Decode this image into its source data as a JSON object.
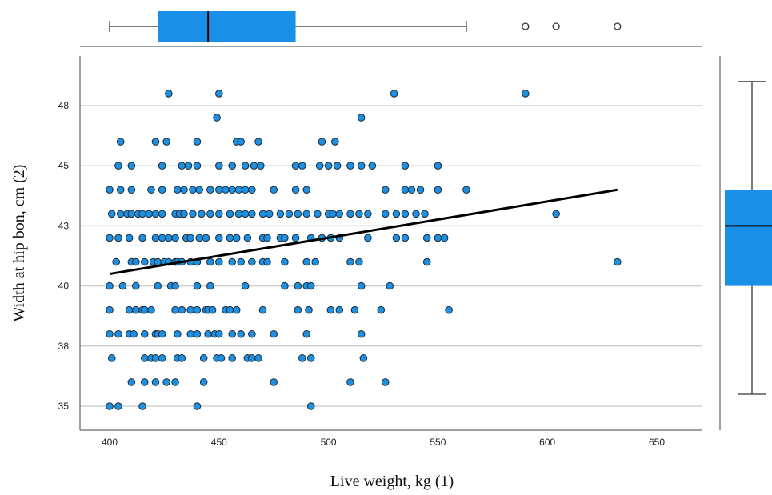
{
  "chart_data": {
    "type": "scatter",
    "title": "",
    "xlabel": "Live weight, kg (1)",
    "ylabel": "Width at hip bon, cm (2)",
    "xlim": [
      385,
      660
    ],
    "ylim": [
      34,
      50
    ],
    "xticks": [
      400,
      450,
      500,
      550,
      600,
      650
    ],
    "yticks": [
      {
        "value": 35,
        "label": "35"
      },
      {
        "value": 37.5,
        "label": "38"
      },
      {
        "value": 40,
        "label": "40"
      },
      {
        "value": 42.5,
        "label": "43"
      },
      {
        "value": 45,
        "label": "45"
      },
      {
        "value": 47.5,
        "label": "48"
      }
    ],
    "grid": "horizontal",
    "colors": {
      "points": "#1f8fe0",
      "point_edge": "#1a2a3a",
      "box": "#1a8fe8",
      "fit_line": "#000000",
      "grid": "#d0d0d0"
    },
    "points": [
      [
        400,
        35
      ],
      [
        404,
        35
      ],
      [
        415,
        35
      ],
      [
        440,
        35
      ],
      [
        492,
        35
      ],
      [
        410,
        36
      ],
      [
        416,
        36
      ],
      [
        421,
        36
      ],
      [
        426,
        36
      ],
      [
        430,
        36
      ],
      [
        443,
        36
      ],
      [
        475,
        36
      ],
      [
        510,
        36
      ],
      [
        526,
        36
      ],
      [
        401,
        37
      ],
      [
        416,
        37
      ],
      [
        419,
        37
      ],
      [
        421,
        37
      ],
      [
        424,
        37
      ],
      [
        431,
        37
      ],
      [
        433,
        37
      ],
      [
        443,
        37
      ],
      [
        449,
        37
      ],
      [
        451,
        37
      ],
      [
        456,
        37
      ],
      [
        463,
        37
      ],
      [
        465,
        37
      ],
      [
        468,
        37
      ],
      [
        488,
        37
      ],
      [
        492,
        37
      ],
      [
        516,
        37
      ],
      [
        400,
        38
      ],
      [
        404,
        38
      ],
      [
        409,
        38
      ],
      [
        411,
        38
      ],
      [
        416,
        38
      ],
      [
        421,
        38
      ],
      [
        422,
        38
      ],
      [
        424,
        38
      ],
      [
        431,
        38
      ],
      [
        437,
        38
      ],
      [
        440,
        38
      ],
      [
        445,
        38
      ],
      [
        448,
        38
      ],
      [
        450,
        38
      ],
      [
        456,
        38
      ],
      [
        460,
        38
      ],
      [
        465,
        38
      ],
      [
        475,
        38
      ],
      [
        490,
        38
      ],
      [
        515,
        38
      ],
      [
        400,
        39
      ],
      [
        409,
        39
      ],
      [
        412,
        39
      ],
      [
        415,
        39
      ],
      [
        416,
        39
      ],
      [
        419,
        39
      ],
      [
        430,
        39
      ],
      [
        433,
        39
      ],
      [
        437,
        39
      ],
      [
        440,
        39
      ],
      [
        444,
        39
      ],
      [
        445,
        39
      ],
      [
        447,
        39
      ],
      [
        453,
        39
      ],
      [
        455,
        39
      ],
      [
        458,
        39
      ],
      [
        470,
        39
      ],
      [
        486,
        39
      ],
      [
        491,
        39
      ],
      [
        501,
        39
      ],
      [
        505,
        39
      ],
      [
        512,
        39
      ],
      [
        524,
        39
      ],
      [
        555,
        39
      ],
      [
        400,
        40
      ],
      [
        406,
        40
      ],
      [
        412,
        40
      ],
      [
        422,
        40
      ],
      [
        428,
        40
      ],
      [
        430,
        40
      ],
      [
        440,
        40
      ],
      [
        446,
        40
      ],
      [
        462,
        40
      ],
      [
        480,
        40
      ],
      [
        486,
        40
      ],
      [
        490,
        40
      ],
      [
        492,
        40
      ],
      [
        515,
        40
      ],
      [
        528,
        40
      ],
      [
        403,
        41
      ],
      [
        410,
        41
      ],
      [
        412,
        41
      ],
      [
        416,
        41
      ],
      [
        420,
        41
      ],
      [
        422,
        41
      ],
      [
        425,
        41
      ],
      [
        427,
        41
      ],
      [
        430,
        41
      ],
      [
        431,
        41
      ],
      [
        433,
        41
      ],
      [
        437,
        41
      ],
      [
        440,
        41
      ],
      [
        446,
        41
      ],
      [
        450,
        41
      ],
      [
        456,
        41
      ],
      [
        460,
        41
      ],
      [
        465,
        41
      ],
      [
        470,
        41
      ],
      [
        472,
        41
      ],
      [
        480,
        41
      ],
      [
        490,
        41
      ],
      [
        494,
        41
      ],
      [
        510,
        41
      ],
      [
        514,
        41
      ],
      [
        545,
        41
      ],
      [
        632,
        41
      ],
      [
        400,
        42
      ],
      [
        404,
        42
      ],
      [
        409,
        42
      ],
      [
        415,
        42
      ],
      [
        421,
        42
      ],
      [
        424,
        42
      ],
      [
        427,
        42
      ],
      [
        430,
        42
      ],
      [
        435,
        42
      ],
      [
        437,
        42
      ],
      [
        441,
        42
      ],
      [
        444,
        42
      ],
      [
        450,
        42
      ],
      [
        455,
        42
      ],
      [
        458,
        42
      ],
      [
        463,
        42
      ],
      [
        470,
        42
      ],
      [
        472,
        42
      ],
      [
        478,
        42
      ],
      [
        480,
        42
      ],
      [
        485,
        42
      ],
      [
        492,
        42
      ],
      [
        497,
        42
      ],
      [
        501,
        42
      ],
      [
        505,
        42
      ],
      [
        518,
        42
      ],
      [
        531,
        42
      ],
      [
        535,
        42
      ],
      [
        545,
        42
      ],
      [
        550,
        42
      ],
      [
        553,
        42
      ],
      [
        401,
        43
      ],
      [
        405,
        43
      ],
      [
        408,
        43
      ],
      [
        410,
        43
      ],
      [
        413,
        43
      ],
      [
        415,
        43
      ],
      [
        418,
        43
      ],
      [
        421,
        43
      ],
      [
        424,
        43
      ],
      [
        430,
        43
      ],
      [
        432,
        43
      ],
      [
        434,
        43
      ],
      [
        438,
        43
      ],
      [
        442,
        43
      ],
      [
        446,
        43
      ],
      [
        450,
        43
      ],
      [
        455,
        43
      ],
      [
        459,
        43
      ],
      [
        462,
        43
      ],
      [
        465,
        43
      ],
      [
        470,
        43
      ],
      [
        473,
        43
      ],
      [
        478,
        43
      ],
      [
        482,
        43
      ],
      [
        486,
        43
      ],
      [
        490,
        43
      ],
      [
        495,
        43
      ],
      [
        500,
        43
      ],
      [
        502,
        43
      ],
      [
        505,
        43
      ],
      [
        510,
        43
      ],
      [
        514,
        43
      ],
      [
        518,
        43
      ],
      [
        526,
        43
      ],
      [
        531,
        43
      ],
      [
        535,
        43
      ],
      [
        540,
        43
      ],
      [
        544,
        43
      ],
      [
        604,
        43
      ],
      [
        400,
        44
      ],
      [
        405,
        44
      ],
      [
        410,
        44
      ],
      [
        419,
        44
      ],
      [
        424,
        44
      ],
      [
        431,
        44
      ],
      [
        434,
        44
      ],
      [
        438,
        44
      ],
      [
        441,
        44
      ],
      [
        446,
        44
      ],
      [
        450,
        44
      ],
      [
        453,
        44
      ],
      [
        456,
        44
      ],
      [
        459,
        44
      ],
      [
        462,
        44
      ],
      [
        465,
        44
      ],
      [
        475,
        44
      ],
      [
        485,
        44
      ],
      [
        490,
        44
      ],
      [
        526,
        44
      ],
      [
        535,
        44
      ],
      [
        538,
        44
      ],
      [
        542,
        44
      ],
      [
        550,
        44
      ],
      [
        563,
        44
      ],
      [
        404,
        45
      ],
      [
        410,
        45
      ],
      [
        424,
        45
      ],
      [
        433,
        45
      ],
      [
        436,
        45
      ],
      [
        440,
        45
      ],
      [
        450,
        45
      ],
      [
        456,
        45
      ],
      [
        462,
        45
      ],
      [
        466,
        45
      ],
      [
        469,
        45
      ],
      [
        485,
        45
      ],
      [
        488,
        45
      ],
      [
        496,
        45
      ],
      [
        500,
        45
      ],
      [
        504,
        45
      ],
      [
        510,
        45
      ],
      [
        515,
        45
      ],
      [
        520,
        45
      ],
      [
        535,
        45
      ],
      [
        550,
        45
      ],
      [
        405,
        46
      ],
      [
        421,
        46
      ],
      [
        426,
        46
      ],
      [
        440,
        46
      ],
      [
        458,
        46
      ],
      [
        460,
        46
      ],
      [
        468,
        46
      ],
      [
        497,
        46
      ],
      [
        503,
        46
      ],
      [
        449,
        47
      ],
      [
        515,
        47
      ],
      [
        427,
        48
      ],
      [
        450,
        48
      ],
      [
        530,
        48
      ],
      [
        590,
        48
      ]
    ],
    "fit_line": {
      "x": [
        400,
        632
      ],
      "y": [
        40.5,
        44.0
      ]
    },
    "x_boxplot": {
      "whisker_low": 400,
      "q1": 422,
      "median": 445,
      "q3": 485,
      "whisker_high": 563,
      "outliers": [
        590,
        604,
        632
      ]
    },
    "y_boxplot": {
      "whisker_low": 35.5,
      "q1": 40,
      "median": 42.5,
      "q3": 44,
      "whisker_high": 48.5,
      "outliers": []
    }
  }
}
